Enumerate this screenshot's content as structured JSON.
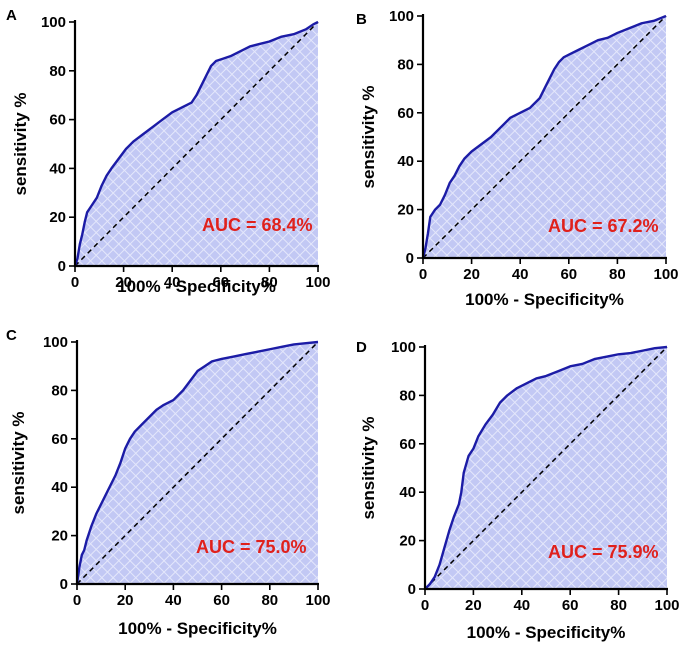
{
  "colors": {
    "roc_line": "#1c1ca6",
    "fill": "#c2c8f4",
    "hatch": "#e4e7fb",
    "auc_text": "#e0211c",
    "axis": "#000000"
  },
  "chart_data": [
    {
      "panel": "A",
      "type": "area",
      "xlabel": "100% - Specificity%",
      "ylabel": "sensitivity %",
      "xlim": [
        0,
        100
      ],
      "ylim": [
        0,
        100
      ],
      "xticks": [
        0,
        20,
        40,
        60,
        80,
        100
      ],
      "yticks": [
        0,
        20,
        40,
        60,
        80,
        100
      ],
      "annotation": "AUC = 68.4%",
      "series": [
        {
          "name": "ROC",
          "x": [
            0,
            1,
            2,
            3,
            4,
            5,
            7,
            9,
            11,
            13,
            15,
            18,
            21,
            24,
            28,
            32,
            36,
            40,
            44,
            48,
            50,
            52,
            54,
            56,
            58,
            61,
            64,
            68,
            72,
            76,
            80,
            85,
            90,
            95,
            98,
            100
          ],
          "y": [
            0,
            3,
            9,
            13,
            18,
            22,
            25,
            28,
            33,
            37,
            40,
            44,
            48,
            51,
            54,
            57,
            60,
            63,
            65,
            67,
            70,
            74,
            78,
            82,
            84,
            85,
            86,
            88,
            90,
            91,
            92,
            94,
            95,
            97,
            99,
            100
          ]
        },
        {
          "name": "reference",
          "x": [
            0,
            100
          ],
          "y": [
            0,
            100
          ]
        }
      ]
    },
    {
      "panel": "B",
      "type": "area",
      "xlabel": "100% - Specificity%",
      "ylabel": "sensitivity %",
      "xlim": [
        0,
        100
      ],
      "ylim": [
        0,
        100
      ],
      "xticks": [
        0,
        20,
        40,
        60,
        80,
        100
      ],
      "yticks": [
        0,
        20,
        40,
        60,
        80,
        100
      ],
      "annotation": "AUC = 67.2%",
      "series": [
        {
          "name": "ROC",
          "x": [
            0,
            1,
            2,
            3,
            5,
            7,
            9,
            11,
            13,
            15,
            17,
            20,
            24,
            28,
            32,
            36,
            40,
            44,
            48,
            50,
            52,
            54,
            56,
            58,
            60,
            64,
            68,
            72,
            76,
            80,
            85,
            90,
            95,
            100
          ],
          "y": [
            0,
            4,
            10,
            17,
            20,
            22,
            26,
            31,
            34,
            38,
            41,
            44,
            47,
            50,
            54,
            58,
            60,
            62,
            66,
            70,
            74,
            78,
            81,
            83,
            84,
            86,
            88,
            90,
            91,
            93,
            95,
            97,
            98,
            100
          ]
        },
        {
          "name": "reference",
          "x": [
            0,
            100
          ],
          "y": [
            0,
            100
          ]
        }
      ]
    },
    {
      "panel": "C",
      "type": "area",
      "xlabel": "100% - Specificity%",
      "ylabel": "sensitivity %",
      "xlim": [
        0,
        100
      ],
      "ylim": [
        0,
        100
      ],
      "xticks": [
        0,
        20,
        40,
        60,
        80,
        100
      ],
      "yticks": [
        0,
        20,
        40,
        60,
        80,
        100
      ],
      "annotation": "AUC = 75.0%",
      "series": [
        {
          "name": "ROC",
          "x": [
            0,
            1,
            2,
            3,
            4,
            6,
            8,
            10,
            12,
            14,
            16,
            18,
            20,
            22,
            24,
            27,
            30,
            33,
            36,
            40,
            44,
            47,
            50,
            53,
            56,
            60,
            65,
            70,
            75,
            80,
            85,
            90,
            95,
            100
          ],
          "y": [
            0,
            7,
            12,
            14,
            18,
            24,
            29,
            33,
            37,
            41,
            45,
            50,
            56,
            60,
            63,
            66,
            69,
            72,
            74,
            76,
            80,
            84,
            88,
            90,
            92,
            93,
            94,
            95,
            96,
            97,
            98,
            99,
            99.5,
            100
          ]
        },
        {
          "name": "reference",
          "x": [
            0,
            100
          ],
          "y": [
            0,
            100
          ]
        }
      ]
    },
    {
      "panel": "D",
      "type": "area",
      "xlabel": "100% - Specificity%",
      "ylabel": "sensitivity %",
      "xlim": [
        0,
        100
      ],
      "ylim": [
        0,
        100
      ],
      "xticks": [
        0,
        20,
        40,
        60,
        80,
        100
      ],
      "yticks": [
        0,
        20,
        40,
        60,
        80,
        100
      ],
      "annotation": "AUC = 75.9%",
      "series": [
        {
          "name": "ROC",
          "x": [
            0,
            2,
            4,
            6,
            8,
            10,
            12,
            14,
            15,
            16,
            18,
            20,
            22,
            25,
            28,
            31,
            34,
            38,
            42,
            46,
            50,
            55,
            60,
            65,
            70,
            75,
            80,
            85,
            90,
            95,
            100
          ],
          "y": [
            0,
            2,
            5,
            10,
            17,
            24,
            30,
            35,
            40,
            48,
            55,
            58,
            63,
            68,
            72,
            77,
            80,
            83,
            85,
            87,
            88,
            90,
            92,
            93,
            95,
            96,
            97,
            97.5,
            98.5,
            99.5,
            100
          ]
        },
        {
          "name": "reference",
          "x": [
            0,
            100
          ],
          "y": [
            0,
            100
          ]
        }
      ]
    }
  ]
}
